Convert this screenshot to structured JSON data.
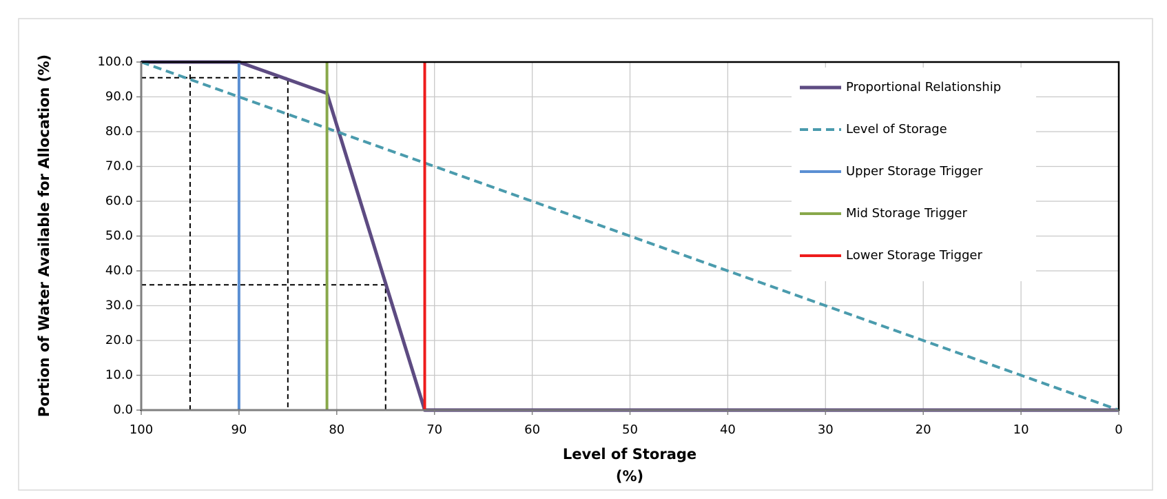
{
  "chart_data": {
    "type": "line",
    "ylabel": "Portion of Water Available for Allocation (%)",
    "xlabel": [
      "Level of Storage",
      "(%)"
    ],
    "xlim": [
      100,
      0
    ],
    "ylim": [
      0,
      100
    ],
    "xticks": [
      100,
      90,
      80,
      70,
      60,
      50,
      40,
      30,
      20,
      10,
      0
    ],
    "yticks": [
      {
        "value": 0,
        "label": "0.0"
      },
      {
        "value": 10,
        "label": "10.0"
      },
      {
        "value": 20,
        "label": "20.0"
      },
      {
        "value": 30,
        "label": "30.0"
      },
      {
        "value": 40,
        "label": "40.0"
      },
      {
        "value": 50,
        "label": "50.0"
      },
      {
        "value": 60,
        "label": "60.0"
      },
      {
        "value": 70,
        "label": "70.0"
      },
      {
        "value": 80,
        "label": "80.0"
      },
      {
        "value": 90,
        "label": "90.0"
      },
      {
        "value": 100,
        "label": "100.0"
      }
    ],
    "grid": true,
    "legend": "upper right",
    "series": [
      {
        "color": "#000000",
        "dash": true,
        "width": 2,
        "x": [
          95,
          95
        ],
        "values": [
          0,
          100
        ]
      },
      {
        "color": "#000000",
        "dash": true,
        "width": 2,
        "x": [
          100,
          85,
          85
        ],
        "values": [
          95.5,
          95.5,
          0
        ]
      },
      {
        "color": "#000000",
        "dash": true,
        "width": 2,
        "x": [
          100,
          75,
          75
        ],
        "values": [
          36,
          36,
          0
        ]
      },
      {
        "name": "Proportional Relationship",
        "color": "#5d4b82",
        "dash": false,
        "width": 5,
        "x": [
          100,
          90,
          81,
          71,
          0
        ],
        "values": [
          100,
          100,
          91,
          0,
          0
        ]
      },
      {
        "name": "Level of Storage",
        "color": "#4a9bad",
        "dash": true,
        "width": 4,
        "x": [
          100,
          0
        ],
        "values": [
          100,
          0
        ]
      },
      {
        "name": "Upper Storage Trigger",
        "color": "#5b8fd3",
        "dash": false,
        "width": 4,
        "x": [
          90,
          90
        ],
        "values": [
          0,
          100
        ]
      },
      {
        "name": "Mid Storage Trigger",
        "color": "#88a84a",
        "dash": false,
        "width": 4,
        "x": [
          81,
          81
        ],
        "values": [
          0,
          100
        ]
      },
      {
        "name": "Lower Storage Trigger",
        "color": "#ee1c1c",
        "dash": false,
        "width": 4,
        "x": [
          71,
          71
        ],
        "values": [
          0,
          100
        ]
      }
    ]
  }
}
